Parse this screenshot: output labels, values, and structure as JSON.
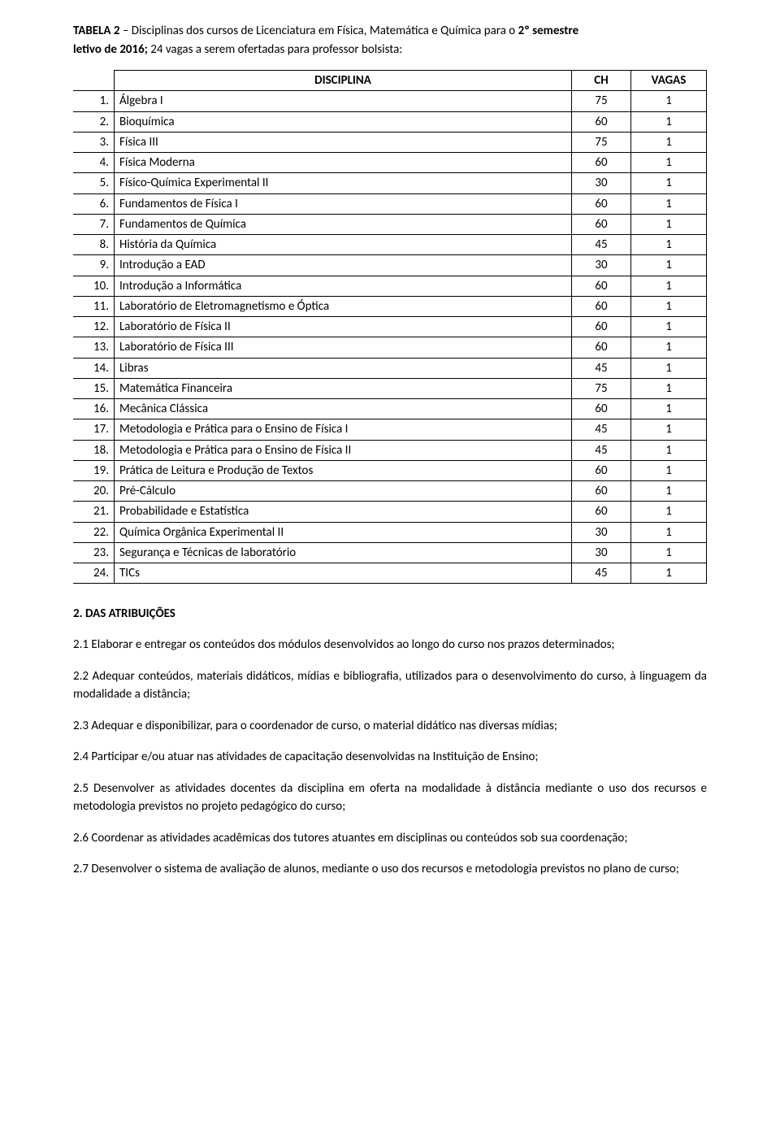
{
  "title_bold_prefix": "TABELA 2",
  "title_rest": " – Disciplinas dos cursos de Licenciatura em Física, Matemática e Química para o ",
  "title_bold_suffix": "2º semestre",
  "subtitle_prefix": "letivo de 2016;",
  "subtitle_rest": " 24 vagas a serem ofertadas para professor bolsista:",
  "table": {
    "columns": [
      "",
      "DISCIPLINA",
      "CH",
      "VAGAS"
    ],
    "rows": [
      [
        "1.",
        "Álgebra I",
        "75",
        "1"
      ],
      [
        "2.",
        "Bioquímica",
        "60",
        "1"
      ],
      [
        "3.",
        "Física III",
        "75",
        "1"
      ],
      [
        "4.",
        "Física Moderna",
        "60",
        "1"
      ],
      [
        "5.",
        "Físico-Química Experimental II",
        "30",
        "1"
      ],
      [
        "6.",
        "Fundamentos de Física I",
        "60",
        "1"
      ],
      [
        "7.",
        "Fundamentos de Química",
        "60",
        "1"
      ],
      [
        "8.",
        "História da Química",
        "45",
        "1"
      ],
      [
        "9.",
        "Introdução a EAD",
        "30",
        "1"
      ],
      [
        "10.",
        "Introdução a Informática",
        "60",
        "1"
      ],
      [
        "11.",
        "Laboratório de Eletromagnetismo e Óptica",
        "60",
        "1"
      ],
      [
        "12.",
        "Laboratório de Física II",
        "60",
        "1"
      ],
      [
        "13.",
        "Laboratório de Física III",
        "60",
        "1"
      ],
      [
        "14.",
        "Libras",
        "45",
        "1"
      ],
      [
        "15.",
        "Matemática Financeira",
        "75",
        "1"
      ],
      [
        "16.",
        "Mecânica Clássica",
        "60",
        "1"
      ],
      [
        "17.",
        "Metodologia e Prática para o Ensino de Física I",
        "45",
        "1"
      ],
      [
        "18.",
        "Metodologia e Prática para o Ensino de Física II",
        "45",
        "1"
      ],
      [
        "19.",
        "Prática de Leitura e Produção de Textos",
        "60",
        "1"
      ],
      [
        "20.",
        "Pré-Cálculo",
        "60",
        "1"
      ],
      [
        "21.",
        "Probabilidade e Estatística",
        "60",
        "1"
      ],
      [
        "22.",
        "Química Orgânica Experimental II",
        "30",
        "1"
      ],
      [
        "23.",
        "Segurança e Técnicas de laboratório",
        "30",
        "1"
      ],
      [
        "24.",
        "TICs",
        "45",
        "1"
      ]
    ]
  },
  "section_title": "2. DAS ATRIBUIÇÕES",
  "paragraphs": [
    "2.1 Elaborar e entregar os conteúdos dos módulos desenvolvidos ao longo do curso nos prazos determinados;",
    "2.2 Adequar conteúdos, materiais didáticos, mídias e bibliografia, utilizados para o desenvolvimento do curso, à linguagem da modalidade a distância;",
    "2.3 Adequar e disponibilizar, para o coordenador de curso, o material didático nas diversas mídias;",
    "2.4 Participar e/ou atuar nas atividades de capacitação desenvolvidas na Instituição de Ensino;",
    " 2.5 Desenvolver as atividades docentes da disciplina em oferta na modalidade à distância mediante o uso dos recursos e metodologia previstos no projeto pedagógico do curso;",
    " 2.6 Coordenar as atividades acadêmicas dos tutores atuantes em disciplinas ou conteúdos sob sua coordenação;",
    "2.7 Desenvolver o sistema de avaliação de alunos, mediante o uso dos recursos e metodologia previstos no plano de curso;"
  ]
}
